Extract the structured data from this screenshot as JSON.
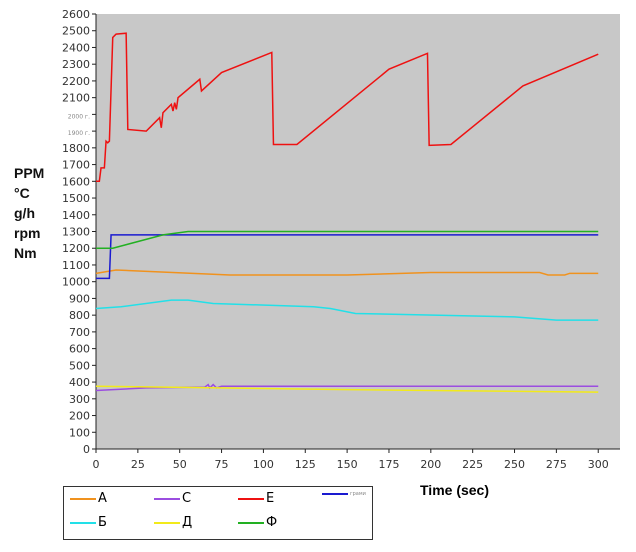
{
  "chart_data": {
    "type": "line",
    "title": "",
    "xlabel": "Time (sec)",
    "ylabel_lines": [
      "PPM",
      "°C",
      "g/h",
      "rpm",
      "Nm"
    ],
    "xlim": [
      0,
      313
    ],
    "ylim": [
      0,
      2600
    ],
    "xticks": [
      0,
      25,
      50,
      75,
      100,
      125,
      150,
      175,
      200,
      225,
      250,
      275,
      300
    ],
    "yticks": [
      {
        "v": 0,
        "l": "0"
      },
      {
        "v": 100,
        "l": "100"
      },
      {
        "v": 200,
        "l": "200"
      },
      {
        "v": 300,
        "l": "300"
      },
      {
        "v": 400,
        "l": "400"
      },
      {
        "v": 500,
        "l": "500"
      },
      {
        "v": 600,
        "l": "600"
      },
      {
        "v": 700,
        "l": "700"
      },
      {
        "v": 800,
        "l": "800"
      },
      {
        "v": 900,
        "l": "900"
      },
      {
        "v": 1000,
        "l": "1000"
      },
      {
        "v": 1100,
        "l": "1100"
      },
      {
        "v": 1200,
        "l": "1200"
      },
      {
        "v": 1300,
        "l": "1300"
      },
      {
        "v": 1400,
        "l": "1400"
      },
      {
        "v": 1500,
        "l": "1500"
      },
      {
        "v": 1600,
        "l": "1600"
      },
      {
        "v": 1700,
        "l": "1700"
      },
      {
        "v": 1800,
        "l": "1800"
      },
      {
        "v": 1900,
        "l": "1900 г.",
        "small": true
      },
      {
        "v": 2000,
        "l": "2000 г.",
        "small": true
      },
      {
        "v": 2100,
        "l": "2100"
      },
      {
        "v": 2200,
        "l": "2200"
      },
      {
        "v": 2300,
        "l": "2300"
      },
      {
        "v": 2400,
        "l": "2400"
      },
      {
        "v": 2500,
        "l": "2500"
      },
      {
        "v": 2600,
        "l": "2600"
      }
    ],
    "background": "#c8c8c8",
    "legend_position": "bottom-left",
    "series": [
      {
        "name": "А",
        "color": "#f0921e",
        "points": [
          [
            0,
            1050
          ],
          [
            12,
            1070
          ],
          [
            80,
            1040
          ],
          [
            150,
            1040
          ],
          [
            200,
            1055
          ],
          [
            265,
            1055
          ],
          [
            270,
            1040
          ],
          [
            280,
            1040
          ],
          [
            283,
            1050
          ],
          [
            300,
            1050
          ]
        ]
      },
      {
        "name": "С",
        "color": "#9b4de0",
        "points": [
          [
            0,
            350
          ],
          [
            30,
            365
          ],
          [
            65,
            370
          ],
          [
            67,
            385
          ],
          [
            68,
            365
          ],
          [
            70,
            385
          ],
          [
            72,
            365
          ],
          [
            75,
            375
          ],
          [
            300,
            375
          ]
        ]
      },
      {
        "name": "Е",
        "color": "#ee1111",
        "points": [
          [
            0,
            1600
          ],
          [
            2,
            1600
          ],
          [
            3,
            1680
          ],
          [
            5,
            1680
          ],
          [
            6,
            1840
          ],
          [
            7,
            1830
          ],
          [
            8,
            1840
          ],
          [
            10,
            2460
          ],
          [
            12,
            2480
          ],
          [
            18,
            2485
          ],
          [
            19,
            1910
          ],
          [
            30,
            1900
          ],
          [
            38,
            1980
          ],
          [
            39,
            1920
          ],
          [
            40,
            2010
          ],
          [
            45,
            2060
          ],
          [
            46,
            2020
          ],
          [
            47,
            2070
          ],
          [
            48,
            2030
          ],
          [
            49,
            2100
          ],
          [
            62,
            2210
          ],
          [
            63,
            2140
          ],
          [
            75,
            2250
          ],
          [
            105,
            2370
          ],
          [
            106,
            1820
          ],
          [
            120,
            1820
          ],
          [
            175,
            2270
          ],
          [
            198,
            2365
          ],
          [
            199,
            1815
          ],
          [
            212,
            1820
          ],
          [
            255,
            2170
          ],
          [
            300,
            2360
          ]
        ]
      },
      {
        "name": "грами",
        "color": "#1a1ad0",
        "points": [
          [
            0,
            1020
          ],
          [
            8,
            1020
          ],
          [
            9,
            1280
          ],
          [
            300,
            1280
          ]
        ]
      },
      {
        "name": "Б",
        "color": "#22e0e8",
        "points": [
          [
            0,
            840
          ],
          [
            15,
            850
          ],
          [
            45,
            890
          ],
          [
            55,
            890
          ],
          [
            70,
            870
          ],
          [
            130,
            850
          ],
          [
            140,
            840
          ],
          [
            155,
            810
          ],
          [
            250,
            790
          ],
          [
            275,
            770
          ],
          [
            300,
            770
          ]
        ]
      },
      {
        "name": "Д",
        "color": "#f2ea1a",
        "points": [
          [
            0,
            375
          ],
          [
            40,
            370
          ],
          [
            150,
            355
          ],
          [
            300,
            340
          ]
        ]
      },
      {
        "name": "Ф",
        "color": "#22b022",
        "points": [
          [
            0,
            1200
          ],
          [
            10,
            1200
          ],
          [
            40,
            1280
          ],
          [
            55,
            1300
          ],
          [
            300,
            1300
          ]
        ]
      }
    ]
  }
}
